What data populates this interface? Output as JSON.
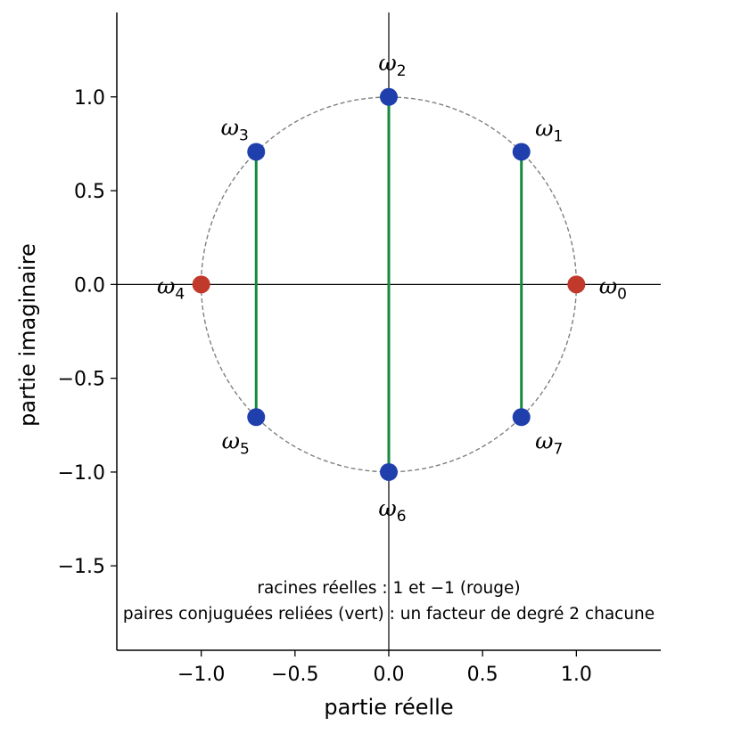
{
  "chart_data": {
    "type": "scatter",
    "xlabel": "partie réelle",
    "ylabel": "partie imaginaire",
    "xlim": [
      -1.45,
      1.45
    ],
    "ylim": [
      -1.95,
      1.45
    ],
    "xticks": [
      -1.0,
      -0.5,
      0.0,
      0.5,
      1.0
    ],
    "xtick_labels": [
      "−1.0",
      "−0.5",
      "0.0",
      "0.5",
      "1.0"
    ],
    "yticks": [
      -1.5,
      -1.0,
      -0.5,
      0.0,
      0.5,
      1.0
    ],
    "ytick_labels": [
      "−1.5",
      "−1.0",
      "−0.5",
      "0.0",
      "0.5",
      "1.0"
    ],
    "grid": false,
    "unit_circle": {
      "radius": 1,
      "style": "dashed",
      "color": "#808080"
    },
    "points": [
      {
        "label": "ω",
        "index": "0",
        "x": 1.0,
        "y": 0.0,
        "color": "#c0392b"
      },
      {
        "label": "ω",
        "index": "1",
        "x": 0.7071,
        "y": 0.7071,
        "color": "#1f3fad"
      },
      {
        "label": "ω",
        "index": "2",
        "x": 0.0,
        "y": 1.0,
        "color": "#1f3fad"
      },
      {
        "label": "ω",
        "index": "3",
        "x": -0.7071,
        "y": 0.7071,
        "color": "#1f3fad"
      },
      {
        "label": "ω",
        "index": "4",
        "x": -1.0,
        "y": 0.0,
        "color": "#c0392b"
      },
      {
        "label": "ω",
        "index": "5",
        "x": -0.7071,
        "y": -0.7071,
        "color": "#1f3fad"
      },
      {
        "label": "ω",
        "index": "6",
        "x": 0.0,
        "y": -1.0,
        "color": "#1f3fad"
      },
      {
        "label": "ω",
        "index": "7",
        "x": 0.7071,
        "y": -0.7071,
        "color": "#1f3fad"
      }
    ],
    "conjugate_pairs": [
      [
        1,
        7
      ],
      [
        2,
        6
      ],
      [
        3,
        5
      ]
    ],
    "pair_line_color": "#138a3c",
    "annotations": [
      "racines réelles : 1 et −1 (rouge)",
      "paires conjuguées reliées (vert) : un facteur de degré 2 chacune"
    ]
  }
}
